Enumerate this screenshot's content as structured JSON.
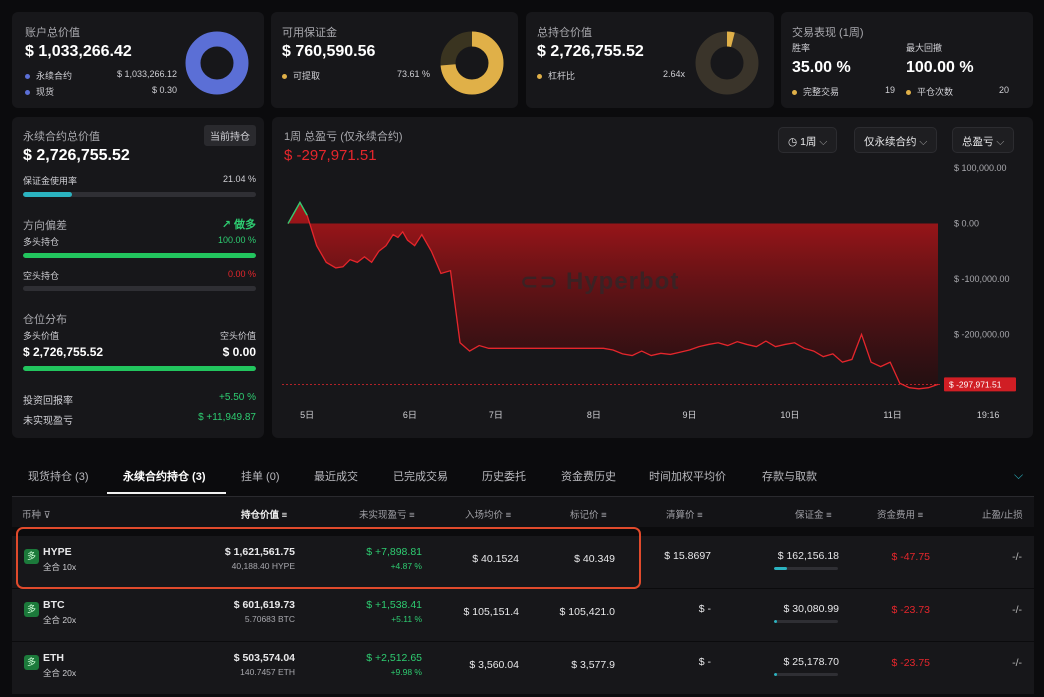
{
  "summary": {
    "account": {
      "label": "账户总价值",
      "value": "$ 1,033,266.42",
      "rows": [
        {
          "name": "永续合约",
          "value": "$ 1,033,266.12"
        },
        {
          "name": "现货",
          "value": "$ 0.30"
        }
      ]
    },
    "margin": {
      "label": "可用保证金",
      "value": "$ 760,590.56",
      "rows": [
        {
          "name": "可提取",
          "value": "73.61 %"
        }
      ]
    },
    "holding": {
      "label": "总持仓价值",
      "value": "$ 2,726,755.52",
      "rows": [
        {
          "name": "杠杆比",
          "value": "2.64x"
        }
      ]
    },
    "performance": {
      "label": "交易表现 (1周)",
      "win_label": "胜率",
      "win_value": "35.00 %",
      "dd_label": "最大回撤",
      "dd_value": "100.00 %",
      "trades_label": "完整交易",
      "trades_value": "19",
      "close_label": "平仓次数",
      "close_value": "20"
    }
  },
  "colors": {
    "blue": "#5b6fd6",
    "gold": "#e0b048",
    "green": "#2ecc71",
    "red": "#e5262c",
    "teal": "#2bb3c0"
  },
  "left": {
    "title": "永续合约总价值",
    "badge": "当前持仓",
    "value": "$ 2,726,755.52",
    "util_label": "保证金使用率",
    "util_value": "21.04 %",
    "util_fraction": 0.2104,
    "bias_label": "方向偏差",
    "bias_value": "做多",
    "long_label": "多头持仓",
    "long_value": "100.00 %",
    "long_fraction": 1.0,
    "short_label": "空头持仓",
    "short_value": "0.00 %",
    "short_fraction": 0.0,
    "dist_label": "仓位分布",
    "dist_long_label": "多头价值",
    "dist_short_label": "空头价值",
    "dist_long_value": "$ 2,726,755.52",
    "dist_short_value": "$ 0.00",
    "roi_label": "投资回报率",
    "roi_value": "+5.50 %",
    "upnl_label": "未实现盈亏",
    "upnl_value": "$ +11,949.87"
  },
  "pnl_chart": {
    "title": "1周 总盈亏 (仅永续合约)",
    "value": "$ -297,971.51",
    "filters": [
      "1周",
      "仅永续合约",
      "总盈亏"
    ],
    "watermark": "Hyperbot"
  },
  "chart_data": {
    "type": "area",
    "x_tick_labels": [
      "5日",
      "6日",
      "7日",
      "8日",
      "9日",
      "10日",
      "11日",
      "19:16"
    ],
    "y_tick_labels": [
      "$ 100,000.00",
      "$ 0.00",
      "$ -100,000.00",
      "$ -200,000.00"
    ],
    "y_ticks": [
      100000,
      0,
      -100000,
      -200000
    ],
    "ylim": [
      -320000,
      120000
    ],
    "last_label": "$ -297,971.51",
    "x": [
      0,
      0.5,
      0.8,
      1.2,
      1.6,
      2.0,
      2.3,
      2.6,
      2.9,
      3.2,
      3.5,
      3.8,
      4.1,
      4.4,
      4.6,
      4.8,
      5.0,
      5.3,
      5.6,
      6.0,
      6.4,
      6.8,
      7.2,
      7.6,
      8.0,
      8.4,
      8.8,
      9.2,
      9.6,
      10.0,
      10.4,
      10.8,
      11.2,
      11.6,
      12.0,
      12.4,
      12.8,
      13.2,
      13.6,
      14.0,
      14.4,
      14.8,
      15.2,
      15.6,
      16.0,
      16.4,
      16.8,
      17.2,
      17.6,
      18.0,
      18.4,
      18.8,
      19.2,
      19.6,
      20.0,
      20.4,
      20.8,
      21.2,
      21.6,
      22.0,
      22.4,
      22.8,
      23.2,
      23.6,
      24.0,
      24.4,
      24.8,
      25.2,
      25.6,
      26.0,
      26.4,
      26.8,
      27.2
    ],
    "values": [
      0,
      38000,
      15000,
      -40000,
      -70000,
      -80000,
      -78000,
      -65000,
      -70000,
      -60000,
      -70000,
      -50000,
      -40000,
      -20000,
      -25000,
      -15000,
      -30000,
      -40000,
      -20000,
      -50000,
      -90000,
      -85000,
      -215000,
      -230000,
      -220000,
      -225000,
      -225000,
      -225000,
      -225000,
      -225000,
      -225000,
      -225000,
      -225000,
      -225000,
      -225000,
      -225000,
      -225000,
      -225000,
      -228000,
      -235000,
      -238000,
      -230000,
      -238000,
      -234000,
      -236000,
      -232000,
      -228000,
      -222000,
      -218000,
      -215000,
      -220000,
      -213000,
      -218000,
      -222000,
      -212000,
      -222000,
      -218000,
      -215000,
      -225000,
      -230000,
      -240000,
      -235000,
      -250000,
      -245000,
      -200000,
      -250000,
      -258000,
      -250000,
      -288000,
      -296000,
      -298000,
      -296000,
      -290000
    ]
  },
  "tabs": [
    {
      "label": "现货持仓 (3)"
    },
    {
      "label": "永续合约持仓 (3)"
    },
    {
      "label": "挂单 (0)"
    },
    {
      "label": "最近成交"
    },
    {
      "label": "已完成交易"
    },
    {
      "label": "历史委托"
    },
    {
      "label": "资金费历史"
    },
    {
      "label": "时间加权平均价"
    },
    {
      "label": "存款与取款"
    }
  ],
  "table": {
    "headers": {
      "coin": "币种",
      "value": "持仓价值",
      "upnl": "未实现盈亏",
      "entry": "入场均价",
      "mark": "标记价",
      "liq": "清算价",
      "margin": "保证金",
      "funding": "资金费用",
      "tpsl": "止盈/止损"
    },
    "rows": [
      {
        "badge": "多",
        "coin": "HYPE",
        "mode": "全合 10x",
        "value": "$ 1,621,561.75",
        "size": "40,188.40 HYPE",
        "upnl": "$ +7,898.81",
        "upnl_pct": "+4.87 %",
        "entry": "$ 40.1524",
        "mark": "$ 40.349",
        "liq": "$ 15.8697",
        "margin": "$ 162,156.18",
        "margin_fraction": 0.2,
        "funding": "$ -47.75",
        "tpsl": "-/-"
      },
      {
        "badge": "多",
        "coin": "BTC",
        "mode": "全合 20x",
        "value": "$ 601,619.73",
        "size": "5.70683 BTC",
        "upnl": "$ +1,538.41",
        "upnl_pct": "+5.11 %",
        "entry": "$ 105,151.4",
        "mark": "$ 105,421.0",
        "liq": "$ -",
        "margin": "$ 30,080.99",
        "margin_fraction": 0.04,
        "funding": "$ -23.73",
        "tpsl": "-/-"
      },
      {
        "badge": "多",
        "coin": "ETH",
        "mode": "全合 20x",
        "value": "$ 503,574.04",
        "size": "140.7457 ETH",
        "upnl": "$ +2,512.65",
        "upnl_pct": "+9.98 %",
        "entry": "$ 3,560.04",
        "mark": "$ 3,577.9",
        "liq": "$ -",
        "margin": "$ 25,178.70",
        "margin_fraction": 0.04,
        "funding": "$ -23.75",
        "tpsl": "-/-"
      }
    ]
  }
}
